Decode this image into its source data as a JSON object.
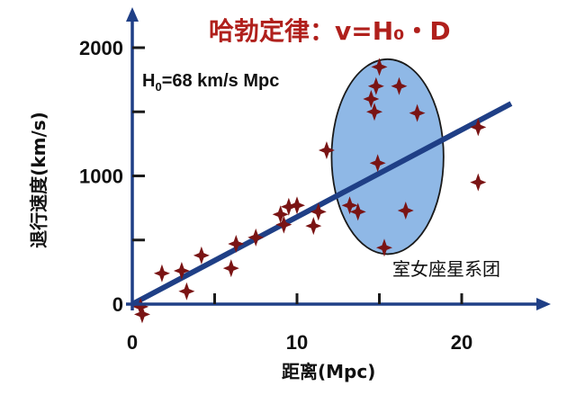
{
  "chart_data": {
    "type": "scatter",
    "title": "哈勃定律：v=H₀・D",
    "xlabel": "距离(Mpc)",
    "ylabel": "退行速度(km/s)",
    "xlim": [
      0,
      24
    ],
    "ylim": [
      -100,
      2300
    ],
    "x_ticks": [
      "0",
      "10",
      "20"
    ],
    "y_ticks": [
      "0",
      "1000",
      "2000"
    ],
    "grid": false,
    "fit_line": {
      "label_prefix": "H",
      "label_sub": "0",
      "label_suffix": "=68 km/s Mpc",
      "slope": 68,
      "intercept": 0,
      "x_range": [
        0,
        23
      ]
    },
    "cluster": {
      "label": "室女座星系团",
      "center_x": 15.5,
      "center_y": 1150,
      "semi_x": 3.4,
      "semi_y": 760
    },
    "points": [
      {
        "x": 0.5,
        "y": -20
      },
      {
        "x": 0.6,
        "y": -80
      },
      {
        "x": 1.8,
        "y": 240
      },
      {
        "x": 3.0,
        "y": 260
      },
      {
        "x": 3.3,
        "y": 100
      },
      {
        "x": 4.2,
        "y": 380
      },
      {
        "x": 6.0,
        "y": 280
      },
      {
        "x": 6.3,
        "y": 470
      },
      {
        "x": 7.5,
        "y": 520
      },
      {
        "x": 9.0,
        "y": 700
      },
      {
        "x": 9.2,
        "y": 620
      },
      {
        "x": 9.5,
        "y": 760
      },
      {
        "x": 10.0,
        "y": 770
      },
      {
        "x": 11.0,
        "y": 610
      },
      {
        "x": 11.3,
        "y": 720
      },
      {
        "x": 11.8,
        "y": 1200
      },
      {
        "x": 13.2,
        "y": 770
      },
      {
        "x": 13.7,
        "y": 720
      },
      {
        "x": 15.0,
        "y": 1850
      },
      {
        "x": 14.8,
        "y": 1700
      },
      {
        "x": 14.5,
        "y": 1600
      },
      {
        "x": 14.7,
        "y": 1500
      },
      {
        "x": 16.2,
        "y": 1700
      },
      {
        "x": 17.3,
        "y": 1490
      },
      {
        "x": 14.9,
        "y": 1100
      },
      {
        "x": 16.6,
        "y": 730
      },
      {
        "x": 15.3,
        "y": 440
      },
      {
        "x": 21.0,
        "y": 1380
      },
      {
        "x": 21.0,
        "y": 950
      }
    ]
  }
}
